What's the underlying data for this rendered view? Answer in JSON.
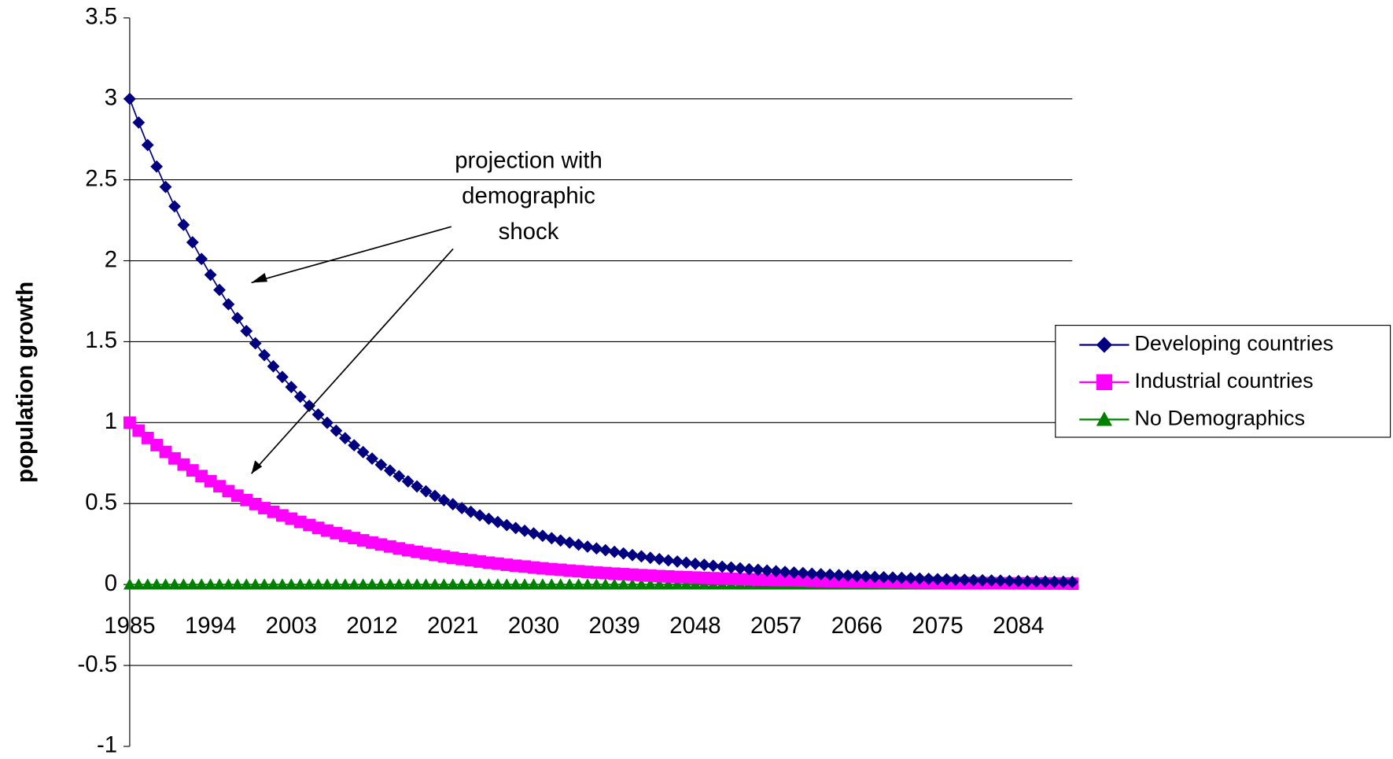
{
  "chart_data": {
    "type": "line",
    "y_label": "population growth",
    "annotation": [
      "projection with",
      "demographic",
      "shock"
    ],
    "categories": [
      "1985",
      null,
      null,
      null,
      null,
      null,
      null,
      null,
      null,
      "1994",
      null,
      null,
      null,
      null,
      null,
      null,
      null,
      null,
      "2003",
      null,
      null,
      null,
      null,
      null,
      null,
      null,
      null,
      "2012",
      null,
      null,
      null,
      null,
      null,
      null,
      null,
      null,
      "2021",
      null,
      null,
      null,
      null,
      null,
      null,
      null,
      null,
      "2030",
      null,
      null,
      null,
      null,
      null,
      null,
      null,
      null,
      "2039",
      null,
      null,
      null,
      null,
      null,
      null,
      null,
      null,
      "2048",
      null,
      null,
      null,
      null,
      null,
      null,
      null,
      null,
      "2057",
      null,
      null,
      null,
      null,
      null,
      null,
      null,
      null,
      "2066",
      null,
      null,
      null,
      null,
      null,
      null,
      null,
      null,
      "2075",
      null,
      null,
      null,
      null,
      null,
      null,
      null,
      null,
      "2084",
      null,
      null,
      null,
      null,
      null,
      null
    ],
    "series": [
      {
        "name": "Developing countries",
        "color": "#000080",
        "marker": "diamond",
        "values": [
          3.0,
          2.854,
          2.715,
          2.582,
          2.456,
          2.336,
          2.222,
          2.114,
          2.011,
          1.913,
          1.82,
          1.731,
          1.646,
          1.566,
          1.49,
          1.417,
          1.348,
          1.282,
          1.22,
          1.16,
          1.104,
          1.05,
          0.999,
          0.95,
          0.904,
          0.86,
          0.818,
          0.778,
          0.74,
          0.704,
          0.669,
          0.637,
          0.606,
          0.576,
          0.548,
          0.521,
          0.496,
          0.472,
          0.449,
          0.427,
          0.406,
          0.386,
          0.367,
          0.349,
          0.332,
          0.316,
          0.301,
          0.286,
          0.272,
          0.259,
          0.246,
          0.234,
          0.223,
          0.212,
          0.202,
          0.192,
          0.182,
          0.174,
          0.165,
          0.157,
          0.149,
          0.142,
          0.135,
          0.128,
          0.122,
          0.116,
          0.11,
          0.105,
          0.1,
          0.095,
          0.091,
          0.086,
          0.082,
          0.078,
          0.074,
          0.071,
          0.067,
          0.064,
          0.061,
          0.058,
          0.055,
          0.052,
          0.05,
          0.047,
          0.045,
          0.043,
          0.041,
          0.039,
          0.037,
          0.035,
          0.033,
          0.032,
          0.03,
          0.029,
          0.027,
          0.026,
          0.025,
          0.024,
          0.022,
          0.021,
          0.02,
          0.019,
          0.018,
          0.017,
          0.017,
          0.016
        ]
      },
      {
        "name": "Industrial countries",
        "color": "#FF00FF",
        "marker": "square",
        "values": [
          1.0,
          0.951,
          0.905,
          0.861,
          0.819,
          0.779,
          0.741,
          0.705,
          0.67,
          0.638,
          0.607,
          0.577,
          0.549,
          0.522,
          0.497,
          0.472,
          0.449,
          0.427,
          0.407,
          0.387,
          0.368,
          0.35,
          0.333,
          0.317,
          0.301,
          0.287,
          0.273,
          0.259,
          0.247,
          0.235,
          0.223,
          0.212,
          0.202,
          0.192,
          0.183,
          0.174,
          0.165,
          0.157,
          0.15,
          0.142,
          0.135,
          0.129,
          0.122,
          0.116,
          0.111,
          0.105,
          0.1,
          0.095,
          0.091,
          0.086,
          0.082,
          0.078,
          0.074,
          0.071,
          0.067,
          0.064,
          0.061,
          0.058,
          0.055,
          0.052,
          0.05,
          0.047,
          0.045,
          0.043,
          0.041,
          0.039,
          0.037,
          0.035,
          0.033,
          0.032,
          0.03,
          0.029,
          0.027,
          0.026,
          0.025,
          0.024,
          0.022,
          0.021,
          0.02,
          0.019,
          0.018,
          0.017,
          0.017,
          0.016,
          0.015,
          0.014,
          0.014,
          0.013,
          0.012,
          0.012,
          0.011,
          0.011,
          0.01,
          0.01,
          0.009,
          0.009,
          0.008,
          0.008,
          0.007,
          0.007,
          0.007,
          0.006,
          0.006,
          0.006,
          0.006,
          0.005
        ]
      },
      {
        "name": "No Demographics",
        "color": "#008000",
        "marker": "triangle",
        "values": [
          0,
          0,
          0,
          0,
          0,
          0,
          0,
          0,
          0,
          0,
          0,
          0,
          0,
          0,
          0,
          0,
          0,
          0,
          0,
          0,
          0,
          0,
          0,
          0,
          0,
          0,
          0,
          0,
          0,
          0,
          0,
          0,
          0,
          0,
          0,
          0,
          0,
          0,
          0,
          0,
          0,
          0,
          0,
          0,
          0,
          0,
          0,
          0,
          0,
          0,
          0,
          0,
          0,
          0,
          0,
          0,
          0,
          0,
          0,
          0,
          0,
          0,
          0,
          0,
          0,
          0,
          0,
          0,
          0,
          0,
          0,
          0,
          0,
          0,
          0,
          0,
          0,
          0,
          0,
          0,
          0,
          0,
          0,
          0,
          0,
          0,
          0,
          0,
          0,
          0,
          0,
          0,
          0,
          0,
          0,
          0,
          0,
          0,
          0,
          0,
          0,
          0,
          0,
          0,
          0,
          0
        ]
      }
    ],
    "ylim": [
      -1,
      3.5
    ],
    "yticks": [
      -1,
      -0.5,
      0,
      0.5,
      1,
      1.5,
      2,
      2.5,
      3,
      3.5
    ],
    "grid": true,
    "legend": "right"
  }
}
